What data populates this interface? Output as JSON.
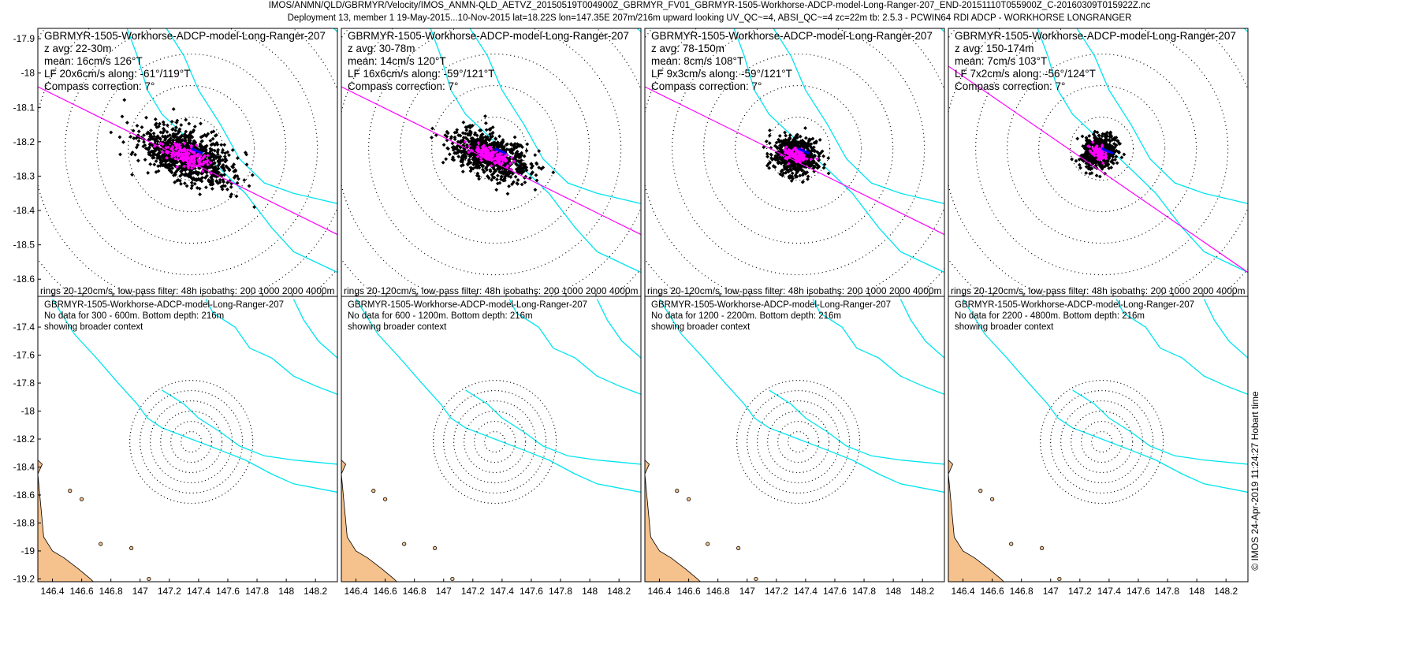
{
  "header": {
    "line1": "IMOS/ANMN/QLD/GBRMYR/Velocity/IMOS_ANMN-QLD_AETVZ_20150519T004900Z_GBRMYR_FV01_GBRMYR-1505-Workhorse-ADCP-model-Long-Ranger-207_END-20151110T055900Z_C-20160309T015922Z.nc",
    "line2": "Deployment 13, member 1 19-May-2015...10-Nov-2015 lat=18.22S lon=147.35E 207m/216m upward looking UV_QC~=4, ABSI_QC~=4 zc=22m tb: 2.5.3 - PCWIN64 RDI ADCP - WORKHORSE LONGRANGER"
  },
  "credit": "© IMOS 24-Apr-2019 11:24:27 Hobart time",
  "colors": {
    "points": "#000000",
    "lowpass_points": "#ff00ff",
    "mean_vector": "#0000ff",
    "major_axis": "#ff00ff",
    "isobaths": "#00e5ee",
    "land": "#f5c18c",
    "rings": "#000000"
  },
  "chart_data": [
    {
      "type": "scatter",
      "panel": "top-1",
      "x_range": [
        146.3,
        148.35
      ],
      "y_range": [
        -18.65,
        -17.87
      ],
      "yticks": [
        "-17.9",
        "-18",
        "-18.1",
        "-18.2",
        "-18.3",
        "-18.4",
        "-18.5",
        "-18.6"
      ],
      "text_lines": [
        "GBRMYR-1505-Workhorse-ADCP-model-Long-Ranger-207",
        "z avg: 22-30m",
        "mean: 16cm/s 126°T",
        "LF 20x6cm/s along: -61°/119°T",
        "Compass correction: 7°"
      ],
      "footer": "rings 20-120cm/s, low-pass filter: 48h isobaths: 200 1000 2000 4000m",
      "mooring": [
        147.35,
        -18.22
      ],
      "cloud": {
        "center": [
          147.32,
          -18.24
        ],
        "spread_lon": 0.38,
        "spread_lat": 0.06,
        "angle_deg": -22,
        "n": 900,
        "scale": 1.0
      },
      "lowpass": {
        "spread_lon": 0.17,
        "spread_lat": 0.016,
        "n": 160
      },
      "major_axis_line": [
        [
          146.3,
          -18.04
        ],
        [
          148.35,
          -18.47
        ]
      ]
    },
    {
      "type": "scatter",
      "panel": "top-2",
      "x_range": [
        146.3,
        148.35
      ],
      "y_range": [
        -18.65,
        -17.87
      ],
      "yticks": [],
      "text_lines": [
        "GBRMYR-1505-Workhorse-ADCP-model-Long-Ranger-207",
        "z avg: 30-78m",
        "mean: 14cm/s 120°T",
        "LF 16x6cm/s along: -59°/121°T",
        "Compass correction: 7°"
      ],
      "footer": "rings 20-120cm/s, low-pass filter: 48h isobaths: 200 1000 2000 4000m",
      "mooring": [
        147.35,
        -18.22
      ],
      "cloud": {
        "center": [
          147.32,
          -18.24
        ],
        "spread_lon": 0.3,
        "spread_lat": 0.05,
        "angle_deg": -22,
        "n": 800,
        "scale": 1.0
      },
      "lowpass": {
        "spread_lon": 0.15,
        "spread_lat": 0.014,
        "n": 140
      },
      "major_axis_line": [
        [
          146.3,
          -18.04
        ],
        [
          148.35,
          -18.47
        ]
      ]
    },
    {
      "type": "scatter",
      "panel": "top-3",
      "x_range": [
        146.3,
        148.35
      ],
      "y_range": [
        -18.65,
        -17.87
      ],
      "yticks": [],
      "text_lines": [
        "GBRMYR-1505-Workhorse-ADCP-model-Long-Ranger-207",
        "z avg: 78-150m",
        "mean: 8cm/s 108°T",
        "LF 9x3cm/s along: -59°/121°T",
        "Compass correction: 7°"
      ],
      "footer": "rings 20-120cm/s, low-pass filter: 48h isobaths: 200 1000 2000 4000m",
      "mooring": [
        147.35,
        -18.22
      ],
      "cloud": {
        "center": [
          147.33,
          -18.24
        ],
        "spread_lon": 0.17,
        "spread_lat": 0.045,
        "angle_deg": -15,
        "n": 650,
        "scale": 1.0
      },
      "lowpass": {
        "spread_lon": 0.09,
        "spread_lat": 0.012,
        "n": 110
      },
      "major_axis_line": [
        [
          146.3,
          -18.04
        ],
        [
          148.35,
          -18.47
        ]
      ]
    },
    {
      "type": "scatter",
      "panel": "top-4",
      "x_range": [
        146.3,
        148.35
      ],
      "y_range": [
        -18.65,
        -17.87
      ],
      "yticks": [],
      "text_lines": [
        "GBRMYR-1505-Workhorse-ADCP-model-Long-Ranger-207",
        "z avg: 150-174m",
        "mean: 7cm/s 103°T",
        "LF 7x2cm/s along: -56°/124°T",
        "Compass correction: 7°"
      ],
      "footer": "rings 20-120cm/s, low-pass filter: 48h isobaths: 200 1000 2000 4000m",
      "mooring": [
        147.35,
        -18.22
      ],
      "cloud": {
        "center": [
          147.33,
          -18.23
        ],
        "spread_lon": 0.12,
        "spread_lat": 0.05,
        "angle_deg": -40,
        "n": 550,
        "scale": 1.0
      },
      "lowpass": {
        "spread_lon": 0.07,
        "spread_lat": 0.01,
        "n": 90
      },
      "major_axis_line": [
        [
          146.3,
          -17.98
        ],
        [
          148.35,
          -18.58
        ]
      ]
    },
    {
      "type": "map",
      "panel": "bottom-1",
      "x_range": [
        146.3,
        148.35
      ],
      "y_range": [
        -19.22,
        -17.18
      ],
      "xticks": [
        "146.4",
        "146.6",
        "146.8",
        "147",
        "147.2",
        "147.4",
        "147.6",
        "147.8",
        "148",
        "148.2"
      ],
      "yticks": [
        "-17.4",
        "-17.6",
        "-17.8",
        "-18",
        "-18.2",
        "-18.4",
        "-18.6",
        "-18.8",
        "-19",
        "-19.2"
      ],
      "text_lines": [
        "GBRMYR-1505-Workhorse-ADCP-model-Long-Ranger-207",
        "No data for 300 - 600m. Bottom depth: 216m",
        "showing broader context"
      ],
      "mooring": [
        147.35,
        -18.22
      ]
    },
    {
      "type": "map",
      "panel": "bottom-2",
      "x_range": [
        146.3,
        148.35
      ],
      "y_range": [
        -19.22,
        -17.18
      ],
      "xticks": [
        "146.4",
        "146.6",
        "146.8",
        "147",
        "147.2",
        "147.4",
        "147.6",
        "147.8",
        "148",
        "148.2"
      ],
      "yticks": [],
      "text_lines": [
        "GBRMYR-1505-Workhorse-ADCP-model-Long-Ranger-207",
        "No data for 600 - 1200m. Bottom depth: 216m",
        "showing broader context"
      ],
      "mooring": [
        147.35,
        -18.22
      ]
    },
    {
      "type": "map",
      "panel": "bottom-3",
      "x_range": [
        146.3,
        148.35
      ],
      "y_range": [
        -19.22,
        -17.18
      ],
      "xticks": [
        "146.4",
        "146.6",
        "146.8",
        "147",
        "147.2",
        "147.4",
        "147.6",
        "147.8",
        "148",
        "148.2"
      ],
      "yticks": [],
      "text_lines": [
        "GBRMYR-1505-Workhorse-ADCP-model-Long-Ranger-207",
        "No data for 1200 - 2200m. Bottom depth: 216m",
        "showing broader context"
      ],
      "mooring": [
        147.35,
        -18.22
      ]
    },
    {
      "type": "map",
      "panel": "bottom-4",
      "x_range": [
        146.3,
        148.35
      ],
      "y_range": [
        -19.22,
        -17.18
      ],
      "xticks": [
        "146.4",
        "146.6",
        "146.8",
        "147",
        "147.2",
        "147.4",
        "147.6",
        "147.8",
        "148",
        "148.2"
      ],
      "yticks": [],
      "text_lines": [
        "GBRMYR-1505-Workhorse-ADCP-model-Long-Ranger-207",
        "No data for 2200 - 4800m. Bottom depth: 216m",
        "showing broader context"
      ],
      "mooring": [
        147.35,
        -18.22
      ]
    }
  ]
}
